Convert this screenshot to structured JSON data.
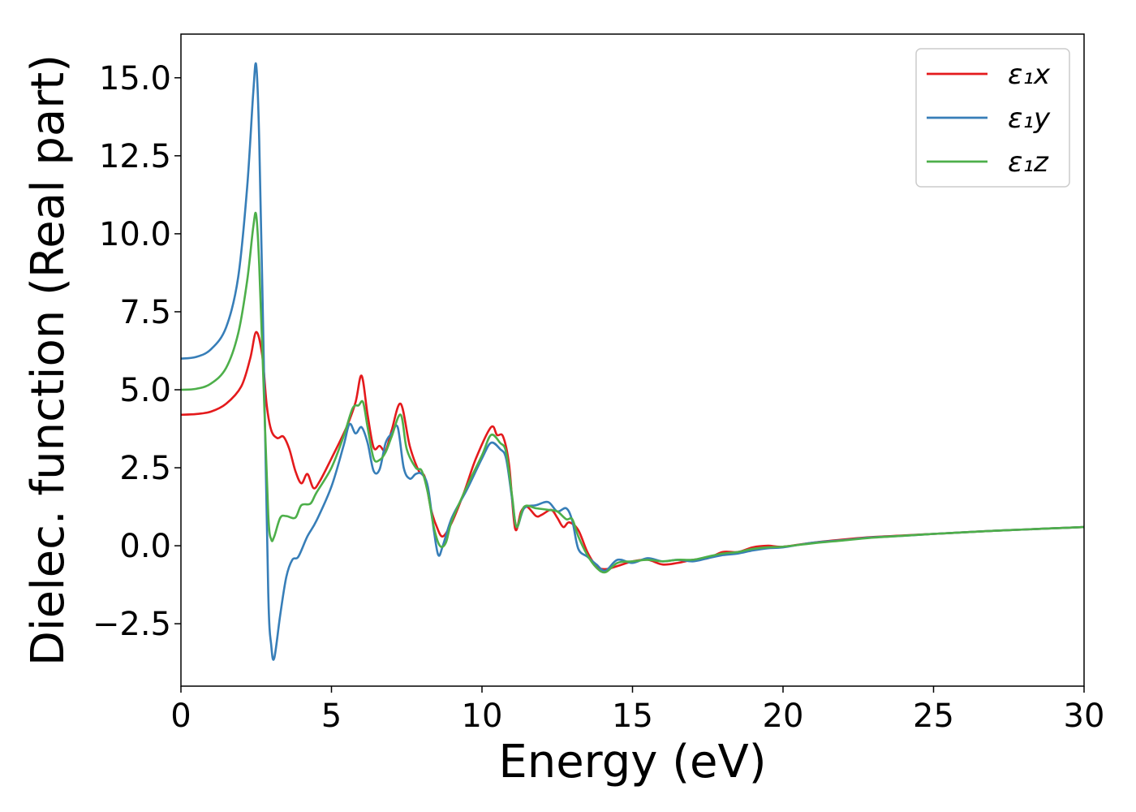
{
  "chart_data": {
    "type": "line",
    "xlabel": "Energy (eV)",
    "ylabel": "Dielec. function (Real part)",
    "xlim": [
      0,
      30
    ],
    "ylim": [
      -4.5,
      16.4
    ],
    "xticks": [
      0,
      5,
      10,
      15,
      20,
      25,
      30
    ],
    "xtick_labels": [
      "0",
      "5",
      "10",
      "15",
      "20",
      "25",
      "30"
    ],
    "yticks": [
      -2.5,
      0.0,
      2.5,
      5.0,
      7.5,
      10.0,
      12.5,
      15.0
    ],
    "ytick_labels": [
      "−2.5",
      "0.0",
      "2.5",
      "5.0",
      "7.5",
      "10.0",
      "12.5",
      "15.0"
    ],
    "grid": false,
    "legend_position": "top-right",
    "series": [
      {
        "name": "ε₁x",
        "color": "#e41a1c",
        "points": [
          [
            0,
            4.2
          ],
          [
            0.5,
            4.22
          ],
          [
            1.0,
            4.3
          ],
          [
            1.5,
            4.55
          ],
          [
            2.0,
            5.1
          ],
          [
            2.3,
            6.0
          ],
          [
            2.5,
            6.85
          ],
          [
            2.7,
            6.1
          ],
          [
            2.85,
            4.5
          ],
          [
            3.0,
            3.7
          ],
          [
            3.2,
            3.45
          ],
          [
            3.4,
            3.5
          ],
          [
            3.6,
            3.1
          ],
          [
            3.8,
            2.4
          ],
          [
            4.0,
            2.0
          ],
          [
            4.2,
            2.3
          ],
          [
            4.4,
            1.85
          ],
          [
            4.6,
            2.05
          ],
          [
            5.0,
            2.8
          ],
          [
            5.5,
            3.8
          ],
          [
            5.8,
            4.6
          ],
          [
            6.0,
            5.45
          ],
          [
            6.2,
            4.2
          ],
          [
            6.4,
            3.15
          ],
          [
            6.6,
            3.2
          ],
          [
            6.8,
            3.05
          ],
          [
            7.0,
            3.7
          ],
          [
            7.3,
            4.55
          ],
          [
            7.6,
            3.2
          ],
          [
            7.9,
            2.4
          ],
          [
            8.1,
            2.2
          ],
          [
            8.3,
            1.2
          ],
          [
            8.5,
            0.6
          ],
          [
            8.7,
            0.3
          ],
          [
            9.0,
            0.75
          ],
          [
            9.4,
            1.7
          ],
          [
            9.8,
            2.8
          ],
          [
            10.3,
            3.8
          ],
          [
            10.5,
            3.55
          ],
          [
            10.7,
            3.5
          ],
          [
            10.9,
            2.6
          ],
          [
            11.1,
            0.55
          ],
          [
            11.3,
            1.1
          ],
          [
            11.5,
            1.25
          ],
          [
            11.8,
            0.95
          ],
          [
            12.0,
            1.0
          ],
          [
            12.3,
            1.15
          ],
          [
            12.5,
            0.9
          ],
          [
            12.7,
            0.6
          ],
          [
            12.9,
            0.75
          ],
          [
            13.2,
            0.5
          ],
          [
            13.5,
            -0.2
          ],
          [
            13.8,
            -0.65
          ],
          [
            14.1,
            -0.75
          ],
          [
            14.5,
            -0.65
          ],
          [
            15.0,
            -0.5
          ],
          [
            15.5,
            -0.45
          ],
          [
            16.0,
            -0.6
          ],
          [
            16.5,
            -0.55
          ],
          [
            17.0,
            -0.45
          ],
          [
            17.5,
            -0.4
          ],
          [
            18.0,
            -0.2
          ],
          [
            18.5,
            -0.2
          ],
          [
            19.0,
            -0.05
          ],
          [
            19.5,
            0.0
          ],
          [
            20.0,
            -0.03
          ],
          [
            21.0,
            0.1
          ],
          [
            22.0,
            0.2
          ],
          [
            23.0,
            0.28
          ],
          [
            24.0,
            0.33
          ],
          [
            25.0,
            0.38
          ],
          [
            26.0,
            0.43
          ],
          [
            27.0,
            0.48
          ],
          [
            28.0,
            0.52
          ],
          [
            29.0,
            0.56
          ],
          [
            30.0,
            0.6
          ]
        ]
      },
      {
        "name": "ε₁y",
        "color": "#377eb8",
        "points": [
          [
            0,
            6.0
          ],
          [
            0.5,
            6.05
          ],
          [
            1.0,
            6.3
          ],
          [
            1.5,
            7.0
          ],
          [
            1.9,
            8.6
          ],
          [
            2.2,
            11.5
          ],
          [
            2.4,
            14.5
          ],
          [
            2.5,
            15.4
          ],
          [
            2.6,
            13.0
          ],
          [
            2.75,
            6.0
          ],
          [
            2.9,
            -1.5
          ],
          [
            3.0,
            -3.2
          ],
          [
            3.1,
            -3.6
          ],
          [
            3.3,
            -2.2
          ],
          [
            3.5,
            -1.0
          ],
          [
            3.7,
            -0.45
          ],
          [
            3.9,
            -0.35
          ],
          [
            4.2,
            0.3
          ],
          [
            4.5,
            0.8
          ],
          [
            5.0,
            1.9
          ],
          [
            5.4,
            3.2
          ],
          [
            5.6,
            3.9
          ],
          [
            5.8,
            3.6
          ],
          [
            6.0,
            3.8
          ],
          [
            6.2,
            3.3
          ],
          [
            6.4,
            2.4
          ],
          [
            6.6,
            2.45
          ],
          [
            6.8,
            3.3
          ],
          [
            7.0,
            3.6
          ],
          [
            7.2,
            3.8
          ],
          [
            7.4,
            2.5
          ],
          [
            7.6,
            2.15
          ],
          [
            7.8,
            2.3
          ],
          [
            8.0,
            2.3
          ],
          [
            8.2,
            1.9
          ],
          [
            8.4,
            0.5
          ],
          [
            8.55,
            -0.3
          ],
          [
            8.7,
            0.0
          ],
          [
            9.0,
            0.9
          ],
          [
            9.5,
            1.8
          ],
          [
            10.0,
            2.8
          ],
          [
            10.3,
            3.3
          ],
          [
            10.6,
            3.1
          ],
          [
            10.8,
            2.8
          ],
          [
            11.0,
            1.5
          ],
          [
            11.15,
            0.6
          ],
          [
            11.4,
            1.2
          ],
          [
            11.8,
            1.3
          ],
          [
            12.2,
            1.4
          ],
          [
            12.5,
            1.1
          ],
          [
            12.8,
            1.2
          ],
          [
            13.0,
            0.8
          ],
          [
            13.2,
            -0.1
          ],
          [
            13.5,
            -0.35
          ],
          [
            13.8,
            -0.6
          ],
          [
            14.1,
            -0.8
          ],
          [
            14.5,
            -0.45
          ],
          [
            15.0,
            -0.55
          ],
          [
            15.5,
            -0.4
          ],
          [
            16.0,
            -0.5
          ],
          [
            16.5,
            -0.45
          ],
          [
            17.0,
            -0.5
          ],
          [
            17.5,
            -0.4
          ],
          [
            18.0,
            -0.3
          ],
          [
            18.5,
            -0.25
          ],
          [
            19.0,
            -0.15
          ],
          [
            19.5,
            -0.08
          ],
          [
            20.0,
            -0.05
          ],
          [
            21.0,
            0.1
          ],
          [
            22.0,
            0.18
          ],
          [
            23.0,
            0.27
          ],
          [
            24.0,
            0.32
          ],
          [
            25.0,
            0.38
          ],
          [
            26.0,
            0.43
          ],
          [
            27.0,
            0.48
          ],
          [
            28.0,
            0.52
          ],
          [
            29.0,
            0.56
          ],
          [
            30.0,
            0.6
          ]
        ]
      },
      {
        "name": "ε₁z",
        "color": "#4daf4a",
        "points": [
          [
            0,
            5.0
          ],
          [
            0.5,
            5.03
          ],
          [
            1.0,
            5.2
          ],
          [
            1.5,
            5.7
          ],
          [
            1.9,
            6.8
          ],
          [
            2.2,
            8.5
          ],
          [
            2.4,
            10.2
          ],
          [
            2.5,
            10.6
          ],
          [
            2.6,
            9.0
          ],
          [
            2.75,
            5.0
          ],
          [
            2.9,
            1.0
          ],
          [
            3.0,
            0.2
          ],
          [
            3.1,
            0.3
          ],
          [
            3.3,
            0.9
          ],
          [
            3.5,
            0.95
          ],
          [
            3.8,
            0.9
          ],
          [
            4.0,
            1.3
          ],
          [
            4.3,
            1.35
          ],
          [
            4.5,
            1.7
          ],
          [
            5.0,
            2.5
          ],
          [
            5.4,
            3.5
          ],
          [
            5.7,
            4.4
          ],
          [
            5.9,
            4.5
          ],
          [
            6.05,
            4.6
          ],
          [
            6.2,
            3.8
          ],
          [
            6.4,
            2.8
          ],
          [
            6.6,
            2.75
          ],
          [
            6.8,
            3.0
          ],
          [
            7.0,
            3.5
          ],
          [
            7.3,
            4.2
          ],
          [
            7.5,
            3.1
          ],
          [
            7.8,
            2.5
          ],
          [
            8.0,
            2.4
          ],
          [
            8.2,
            1.7
          ],
          [
            8.4,
            0.6
          ],
          [
            8.6,
            0.0
          ],
          [
            8.8,
            0.1
          ],
          [
            9.0,
            0.8
          ],
          [
            9.5,
            1.9
          ],
          [
            10.0,
            2.9
          ],
          [
            10.3,
            3.55
          ],
          [
            10.6,
            3.3
          ],
          [
            10.8,
            3.0
          ],
          [
            11.0,
            1.6
          ],
          [
            11.15,
            0.6
          ],
          [
            11.4,
            1.25
          ],
          [
            11.8,
            1.2
          ],
          [
            12.2,
            1.15
          ],
          [
            12.5,
            1.1
          ],
          [
            12.8,
            0.85
          ],
          [
            13.0,
            0.85
          ],
          [
            13.2,
            0.3
          ],
          [
            13.5,
            -0.3
          ],
          [
            13.8,
            -0.7
          ],
          [
            14.1,
            -0.85
          ],
          [
            14.5,
            -0.55
          ],
          [
            15.0,
            -0.5
          ],
          [
            15.5,
            -0.45
          ],
          [
            16.0,
            -0.5
          ],
          [
            16.5,
            -0.45
          ],
          [
            17.0,
            -0.45
          ],
          [
            17.5,
            -0.35
          ],
          [
            18.0,
            -0.25
          ],
          [
            18.5,
            -0.2
          ],
          [
            19.0,
            -0.1
          ],
          [
            19.5,
            -0.05
          ],
          [
            20.0,
            -0.03
          ],
          [
            21.0,
            0.08
          ],
          [
            22.0,
            0.17
          ],
          [
            23.0,
            0.26
          ],
          [
            24.0,
            0.32
          ],
          [
            25.0,
            0.38
          ],
          [
            26.0,
            0.43
          ],
          [
            27.0,
            0.48
          ],
          [
            28.0,
            0.52
          ],
          [
            29.0,
            0.56
          ],
          [
            30.0,
            0.6
          ]
        ]
      }
    ]
  }
}
